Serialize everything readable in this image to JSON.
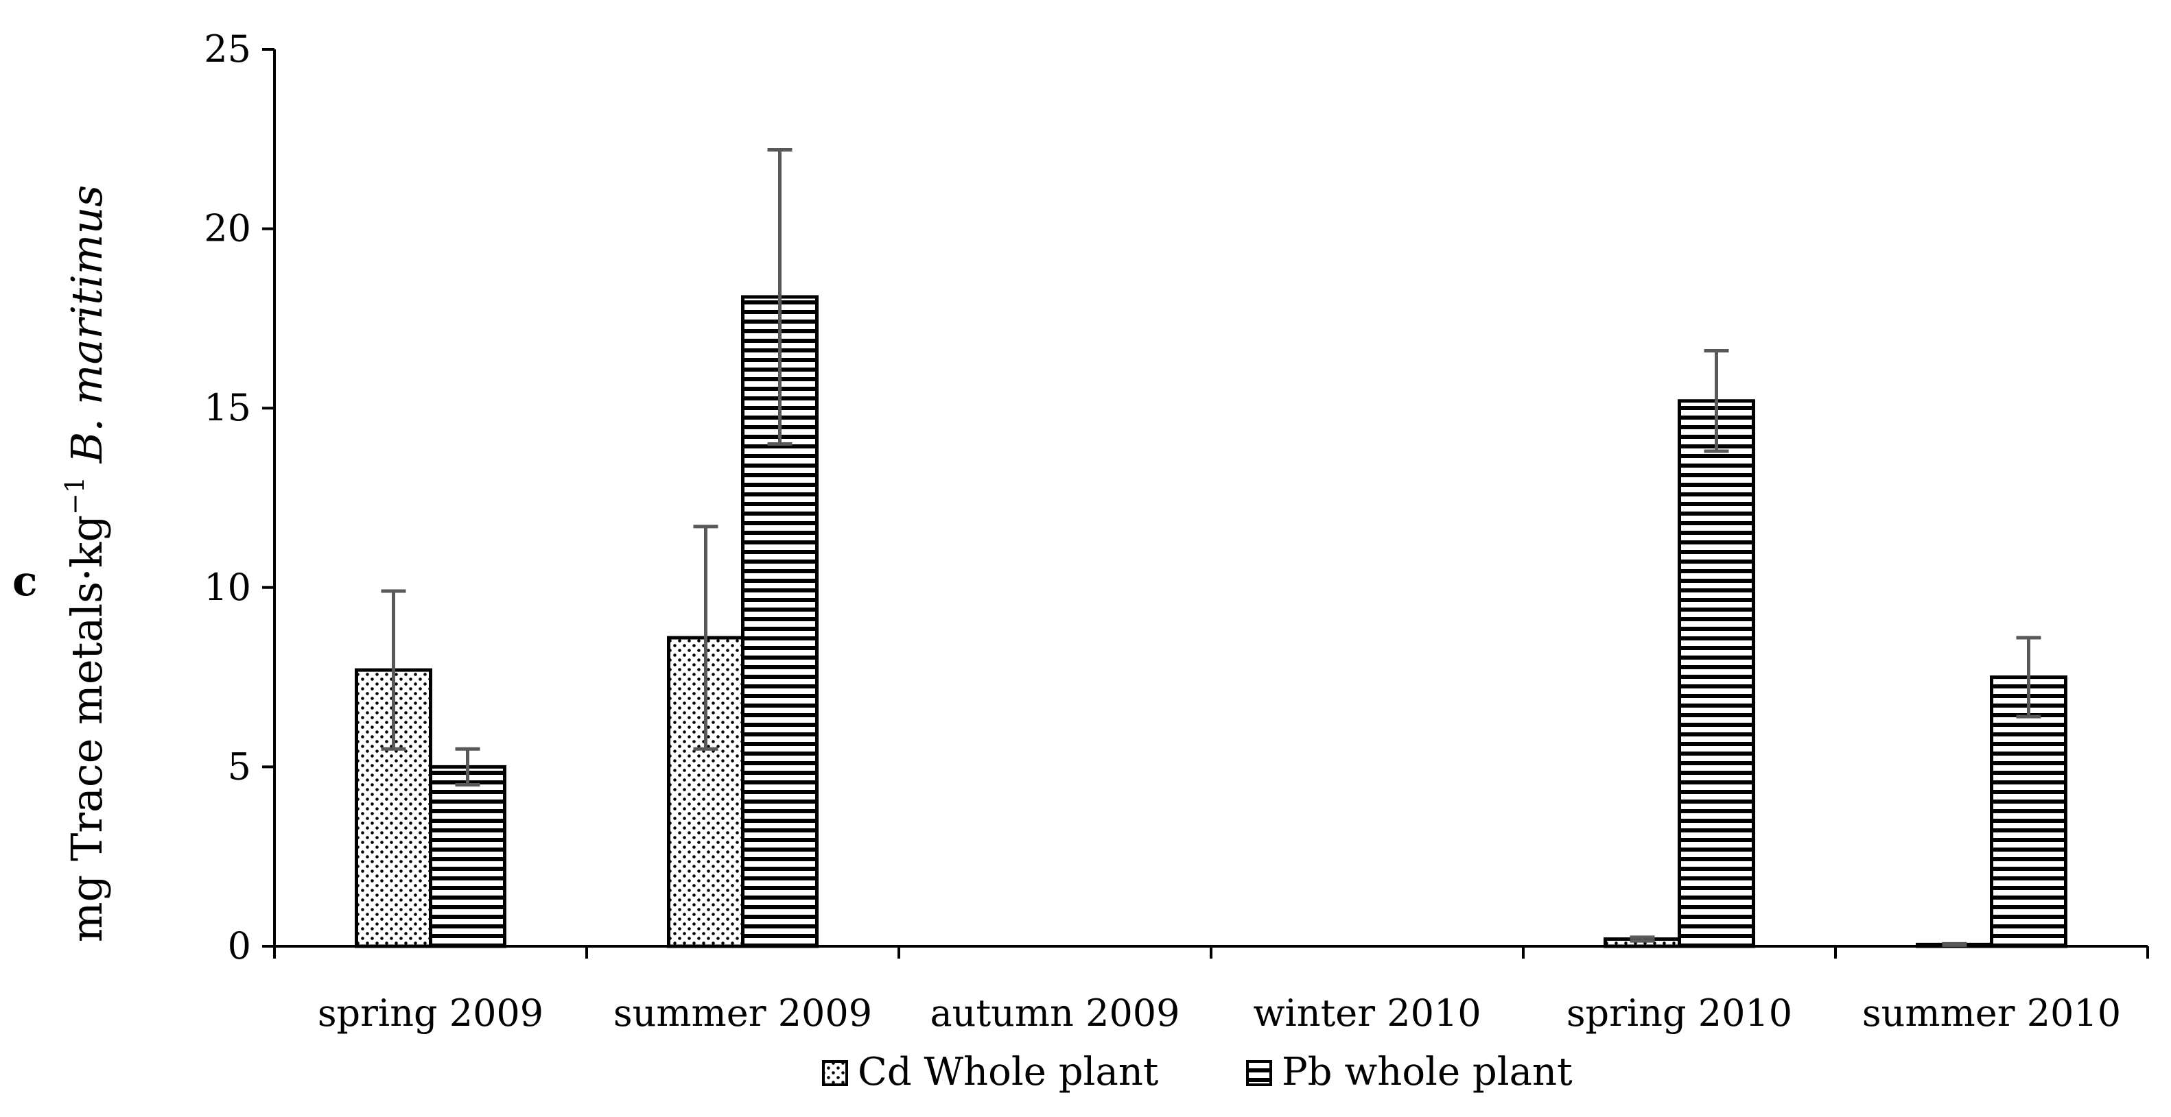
{
  "panel_letter": "c",
  "chart_data": {
    "type": "bar",
    "categories": [
      "spring 2009",
      "summer 2009",
      "autumn 2009",
      "winter 2010",
      "spring 2010",
      "summer 2010"
    ],
    "ylabel_parts": [
      "mg Trace metals·kg",
      "−1",
      " B. maritimus"
    ],
    "ylim": [
      0,
      25
    ],
    "yticks": [
      0,
      5,
      10,
      15,
      20,
      25
    ],
    "grid": false,
    "legend_position": "bottom",
    "series": [
      {
        "name": "Cd Whole plant",
        "pattern": "dots",
        "values": [
          7.7,
          8.6,
          0,
          0,
          0.2,
          0.05
        ],
        "errors": [
          2.2,
          3.1,
          0,
          0,
          0.05,
          0.02
        ]
      },
      {
        "name": "Pb whole plant",
        "pattern": "horizontal-stripes",
        "values": [
          5.0,
          18.1,
          0,
          0,
          15.2,
          7.5
        ],
        "errors": [
          0.5,
          4.1,
          0,
          0,
          1.4,
          1.1
        ]
      }
    ],
    "colors": {
      "axis": "#000000",
      "bar_edge": "#000000",
      "error_bar": "#595959",
      "fill": "#ffffff"
    }
  }
}
